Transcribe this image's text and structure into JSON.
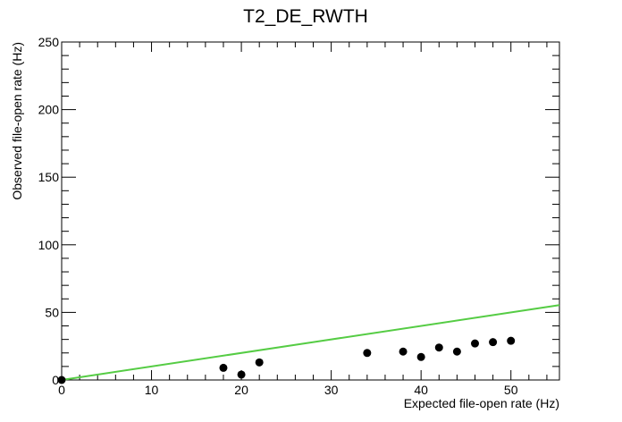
{
  "chart_data": {
    "type": "scatter",
    "title": "T2_DE_RWTH",
    "xlabel": "Expected file-open rate (Hz)",
    "ylabel": "Observed file-open rate (Hz)",
    "xlim": [
      0,
      55.4
    ],
    "ylim": [
      0,
      250
    ],
    "x_ticks": [
      0,
      10,
      20,
      30,
      40,
      50
    ],
    "y_ticks": [
      0,
      50,
      100,
      150,
      200,
      250
    ],
    "x_tick_labels": [
      "0",
      "10",
      "20",
      "30",
      "40",
      "50"
    ],
    "y_tick_labels": [
      "0",
      "50",
      "100",
      "150",
      "200",
      "250"
    ],
    "grid": false,
    "series": [
      {
        "type": "scatter",
        "color": "#000000",
        "points": [
          {
            "x": 0,
            "y": 0
          },
          {
            "x": 18,
            "y": 9
          },
          {
            "x": 20,
            "y": 4
          },
          {
            "x": 22,
            "y": 13
          },
          {
            "x": 34,
            "y": 20
          },
          {
            "x": 38,
            "y": 21
          },
          {
            "x": 40,
            "y": 17
          },
          {
            "x": 42,
            "y": 24
          },
          {
            "x": 44,
            "y": 21
          },
          {
            "x": 46,
            "y": 27
          },
          {
            "x": 48,
            "y": 28
          },
          {
            "x": 50,
            "y": 29
          }
        ]
      },
      {
        "type": "line",
        "color": "#55cc44",
        "points": [
          {
            "x": 0,
            "y": 0
          },
          {
            "x": 55.4,
            "y": 55.4
          }
        ]
      }
    ]
  }
}
